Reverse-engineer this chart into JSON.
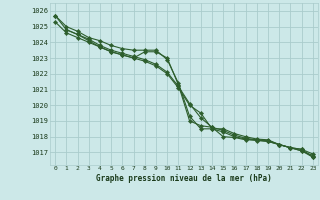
{
  "background_color": "#cce8e8",
  "grid_color": "#aacccc",
  "line_color": "#2d5e2d",
  "text_color": "#1a3a1a",
  "xlabel": "Graphe pression niveau de la mer (hPa)",
  "ylim": [
    1016.2,
    1026.5
  ],
  "xlim": [
    -0.5,
    23.5
  ],
  "yticks": [
    1017,
    1018,
    1019,
    1020,
    1021,
    1022,
    1023,
    1024,
    1025,
    1026
  ],
  "xticks": [
    0,
    1,
    2,
    3,
    4,
    5,
    6,
    7,
    8,
    9,
    10,
    11,
    12,
    13,
    14,
    15,
    16,
    17,
    18,
    19,
    20,
    21,
    22,
    23
  ],
  "series": [
    {
      "x": [
        0,
        1,
        2,
        3,
        4,
        5,
        6,
        7,
        8,
        9,
        10,
        11,
        12,
        13,
        14,
        15,
        16,
        17,
        18,
        19,
        20,
        21,
        22,
        23
      ],
      "y": [
        1025.7,
        1025.0,
        1024.7,
        1024.3,
        1024.1,
        1023.8,
        1023.6,
        1023.5,
        1023.5,
        1023.5,
        1022.9,
        1021.4,
        1019.3,
        1018.5,
        1018.5,
        1018.5,
        1018.2,
        1018.0,
        1017.85,
        1017.8,
        1017.5,
        1017.3,
        1017.2,
        1016.7
      ],
      "marker": "D",
      "markersize": 2.2
    },
    {
      "x": [
        0,
        1,
        2,
        3,
        4,
        5,
        6,
        7,
        8,
        9,
        10,
        11,
        12,
        13,
        14,
        15,
        16,
        17,
        18,
        19,
        20,
        21,
        22,
        23
      ],
      "y": [
        1025.7,
        1024.8,
        1024.5,
        1024.2,
        1023.8,
        1023.5,
        1023.3,
        1023.1,
        1022.9,
        1022.6,
        1022.1,
        1021.2,
        1020.1,
        1019.2,
        1018.6,
        1018.4,
        1018.1,
        1017.9,
        1017.8,
        1017.7,
        1017.5,
        1017.3,
        1017.1,
        1016.7
      ],
      "marker": "D",
      "markersize": 2.2
    },
    {
      "x": [
        1,
        2,
        3,
        4,
        5,
        6,
        7,
        8,
        9,
        10,
        11,
        12,
        13,
        14,
        15,
        16,
        17,
        18,
        19,
        20,
        21,
        22,
        23
      ],
      "y": [
        1024.8,
        1024.5,
        1024.1,
        1023.7,
        1023.4,
        1023.2,
        1023.0,
        1022.8,
        1022.5,
        1022.0,
        1021.1,
        1020.0,
        1019.5,
        1018.5,
        1018.3,
        1018.0,
        1017.85,
        1017.75,
        1017.7,
        1017.5,
        1017.3,
        1017.1,
        1016.8
      ],
      "marker": "D",
      "markersize": 2.2
    },
    {
      "x": [
        0,
        1,
        2,
        3,
        4,
        5,
        6,
        7,
        8,
        9,
        10,
        11,
        12,
        13,
        14,
        15,
        16,
        17,
        18,
        19,
        20,
        21,
        22,
        23
      ],
      "y": [
        1025.3,
        1024.6,
        1024.3,
        1024.0,
        1023.7,
        1023.4,
        1023.2,
        1023.0,
        1023.4,
        1023.4,
        1023.0,
        1021.3,
        1019.0,
        1018.7,
        1018.6,
        1018.0,
        1017.95,
        1017.8,
        1017.8,
        1017.75,
        1017.5,
        1017.3,
        1017.2,
        1016.9
      ],
      "marker": "D",
      "markersize": 2.2
    }
  ]
}
